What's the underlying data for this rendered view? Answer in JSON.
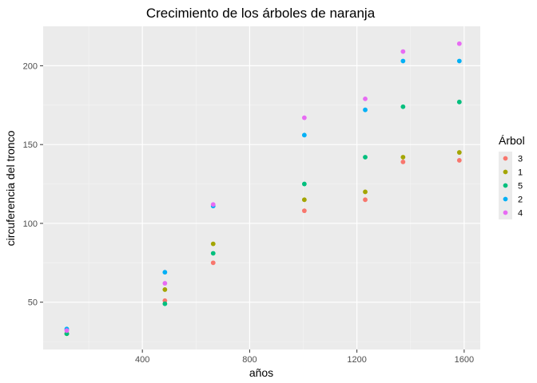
{
  "chart_data": {
    "type": "scatter",
    "title": "Crecimiento de los árboles de naranja",
    "xlabel": "años",
    "ylabel": "circuferencia del tronco",
    "xlim": [
      30,
      1660
    ],
    "ylim": [
      20,
      225
    ],
    "xticks": [
      400,
      800,
      1200,
      1600
    ],
    "yticks": [
      50,
      100,
      150,
      200
    ],
    "grid": true,
    "legend": {
      "title": "Árbol",
      "position": "right"
    },
    "series": [
      {
        "name": "3",
        "color": "#F8766D",
        "points": [
          [
            118,
            30
          ],
          [
            484,
            51
          ],
          [
            664,
            75
          ],
          [
            1004,
            108
          ],
          [
            1231,
            115
          ],
          [
            1372,
            139
          ],
          [
            1582,
            140
          ]
        ]
      },
      {
        "name": "1",
        "color": "#A3A500",
        "points": [
          [
            118,
            30
          ],
          [
            484,
            58
          ],
          [
            664,
            87
          ],
          [
            1004,
            115
          ],
          [
            1231,
            120
          ],
          [
            1372,
            142
          ],
          [
            1582,
            145
          ]
        ]
      },
      {
        "name": "5",
        "color": "#00BF7D",
        "points": [
          [
            118,
            30
          ],
          [
            484,
            49
          ],
          [
            664,
            81
          ],
          [
            1004,
            125
          ],
          [
            1231,
            142
          ],
          [
            1372,
            174
          ],
          [
            1582,
            177
          ]
        ]
      },
      {
        "name": "2",
        "color": "#00B0F6",
        "points": [
          [
            118,
            33
          ],
          [
            484,
            69
          ],
          [
            664,
            111
          ],
          [
            1004,
            156
          ],
          [
            1231,
            172
          ],
          [
            1372,
            203
          ],
          [
            1582,
            203
          ]
        ]
      },
      {
        "name": "4",
        "color": "#E76BF3",
        "points": [
          [
            118,
            32
          ],
          [
            484,
            62
          ],
          [
            664,
            112
          ],
          [
            1004,
            167
          ],
          [
            1231,
            179
          ],
          [
            1372,
            209
          ],
          [
            1582,
            214
          ]
        ]
      }
    ]
  }
}
